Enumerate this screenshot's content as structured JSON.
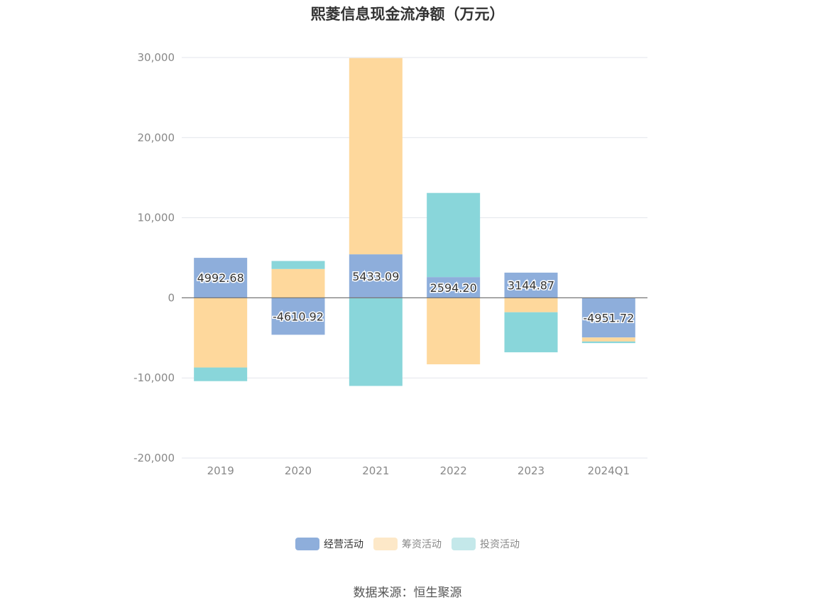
{
  "chart_data": {
    "type": "bar",
    "stacked": true,
    "title": "熙菱信息现金流净额（万元）",
    "categories": [
      "2019",
      "2020",
      "2021",
      "2022",
      "2023",
      "2024Q1"
    ],
    "series": [
      {
        "name": "经营活动",
        "color": "#8eaedb",
        "values": [
          4992.68,
          -4610.92,
          5433.09,
          2594.2,
          3144.87,
          -4951.72
        ]
      },
      {
        "name": "筹资活动",
        "color": "#fed89c",
        "values": [
          -8700,
          3600,
          24500,
          -8300,
          -1800,
          -500
        ]
      },
      {
        "name": "投资活动",
        "color": "#89d6da",
        "values": [
          -1700,
          1000,
          -11000,
          10500,
          -5000,
          -200
        ]
      }
    ],
    "data_labels": [
      "4992.68",
      "-4610.92",
      "5433.09",
      "2594.20",
      "3144.87",
      "-4951.72"
    ],
    "y_ticks": [
      "30,000",
      "20,000",
      "10,000",
      "0",
      "-10,000",
      "-20,000"
    ],
    "ylim": [
      -20000,
      30000
    ],
    "grid": true,
    "legend_position": "bottom"
  },
  "legend": {
    "items": [
      {
        "label": "经营活动",
        "color": "#8eaedb",
        "swatch": "#8eaedb"
      },
      {
        "label": "筹资活动",
        "color": "#fed89c",
        "swatch": "#fde8c8"
      },
      {
        "label": "投资活动",
        "color": "#89d6da",
        "swatch": "#c4e8ea"
      }
    ]
  },
  "source": "数据来源：恒生聚源"
}
